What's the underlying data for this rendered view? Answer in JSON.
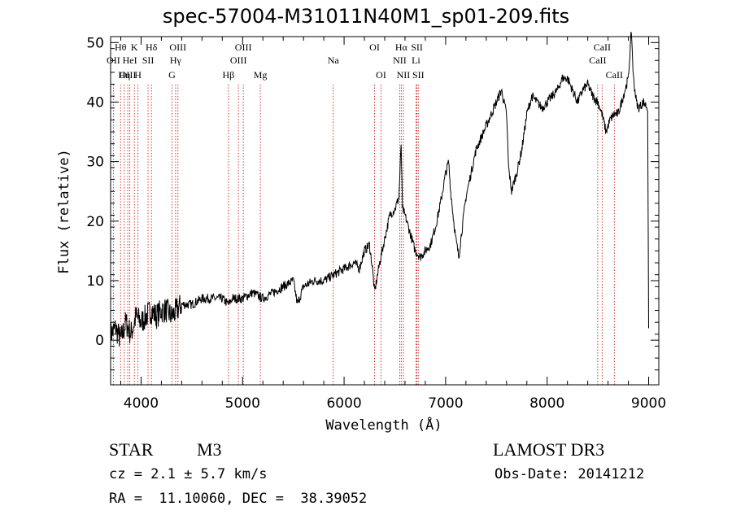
{
  "chart_data": {
    "type": "line",
    "title": "spec-57004-M31011N40M1_sp01-209.fits",
    "xlabel": "Wavelength (Å)",
    "ylabel": "Flux (relative)",
    "xlim": [
      3700,
      9100
    ],
    "ylim": [
      -7.5,
      51
    ],
    "xticks": [
      4000,
      5000,
      6000,
      7000,
      8000,
      9000
    ],
    "yticks": [
      0,
      10,
      20,
      30,
      40,
      50
    ],
    "series": [
      {
        "name": "spectrum",
        "x": [
          3700,
          3750,
          3800,
          3850,
          3900,
          3950,
          4000,
          4050,
          4100,
          4150,
          4200,
          4250,
          4300,
          4350,
          4400,
          4500,
          4600,
          4700,
          4800,
          4861,
          4900,
          5000,
          5100,
          5200,
          5300,
          5400,
          5500,
          5540,
          5600,
          5700,
          5800,
          5900,
          6000,
          6100,
          6150,
          6200,
          6250,
          6280,
          6300,
          6350,
          6400,
          6450,
          6500,
          6540,
          6562,
          6575,
          6600,
          6650,
          6700,
          6750,
          6800,
          6850,
          6900,
          6950,
          7000,
          7030,
          7050,
          7080,
          7100,
          7130,
          7150,
          7200,
          7300,
          7400,
          7500,
          7550,
          7600,
          7620,
          7650,
          7680,
          7700,
          7750,
          7800,
          7850,
          7900,
          7950,
          8000,
          8050,
          8100,
          8150,
          8200,
          8250,
          8300,
          8350,
          8400,
          8450,
          8500,
          8540,
          8580,
          8620,
          8662,
          8700,
          8750,
          8800,
          8830,
          8850,
          8880,
          8900,
          8950,
          8990,
          9000
        ],
        "values": [
          1,
          2,
          0,
          3,
          1,
          4,
          3,
          4,
          5,
          4,
          5,
          5,
          4,
          5,
          6,
          6,
          7,
          7,
          7,
          6,
          7,
          7,
          8,
          7,
          8,
          9,
          10,
          6,
          9,
          10,
          10,
          11,
          12,
          13,
          12,
          15,
          16,
          12,
          8,
          13,
          17,
          21,
          22,
          24,
          33,
          22,
          21,
          18,
          15,
          14,
          15,
          16,
          19,
          23,
          28,
          30,
          25,
          20,
          17,
          14,
          17,
          24,
          32,
          36,
          40,
          42,
          38,
          29,
          25,
          27,
          28,
          32,
          38,
          41,
          40,
          39,
          40,
          41,
          42,
          44,
          44,
          42,
          40,
          42,
          43,
          41,
          40,
          38,
          35,
          37,
          38,
          38,
          41,
          44,
          52,
          44,
          40,
          39,
          40,
          39,
          2
        ]
      }
    ],
    "lines": [
      {
        "label": "Hθ",
        "x": 3798,
        "row": 1
      },
      {
        "label": "OII",
        "x": 3727,
        "row": 2
      },
      {
        "label": "OIII",
        "x": 3869,
        "row": 3
      },
      {
        "label": "K",
        "x": 3934,
        "row": 1
      },
      {
        "label": "H",
        "x": 3969,
        "row": 3
      },
      {
        "label": "HeI",
        "x": 3889,
        "row": 2
      },
      {
        "label": "Hη",
        "x": 3835,
        "row": 3
      },
      {
        "label": "SII",
        "x": 4069,
        "row": 2
      },
      {
        "label": "Hδ",
        "x": 4102,
        "row": 1
      },
      {
        "label": "OIII",
        "x": 4363,
        "row": 1
      },
      {
        "label": "Hγ",
        "x": 4340,
        "row": 2
      },
      {
        "label": "G",
        "x": 4305,
        "row": 3
      },
      {
        "label": "Hβ",
        "x": 4861,
        "row": 3
      },
      {
        "label": "OIII",
        "x": 4959,
        "row": 2
      },
      {
        "label": "OIII",
        "x": 5007,
        "row": 1
      },
      {
        "label": "Mg",
        "x": 5175,
        "row": 3
      },
      {
        "label": "Na",
        "x": 5893,
        "row": 2
      },
      {
        "label": "OI",
        "x": 6300,
        "row": 1
      },
      {
        "label": "OI",
        "x": 6364,
        "row": 3
      },
      {
        "label": "Hα",
        "x": 6563,
        "row": 1
      },
      {
        "label": "NII",
        "x": 6548,
        "row": 2
      },
      {
        "label": "NII",
        "x": 6584,
        "row": 3
      },
      {
        "label": "SII",
        "x": 6717,
        "row": 1
      },
      {
        "label": "Li",
        "x": 6708,
        "row": 2
      },
      {
        "label": "SII",
        "x": 6731,
        "row": 3
      },
      {
        "label": "CaII",
        "x": 8498,
        "row": 2
      },
      {
        "label": "CaII",
        "x": 8542,
        "row": 1
      },
      {
        "label": "CaII",
        "x": 8662,
        "row": 3
      }
    ]
  },
  "info": {
    "class_label": "STAR",
    "subclass": "M3",
    "survey": "LAMOST DR3",
    "cz": "cz = 2.1 ± 5.7 km/s",
    "obs_date": "Obs-Date: 20141212",
    "radec": "RA =  11.10060, DEC =  38.39052"
  }
}
